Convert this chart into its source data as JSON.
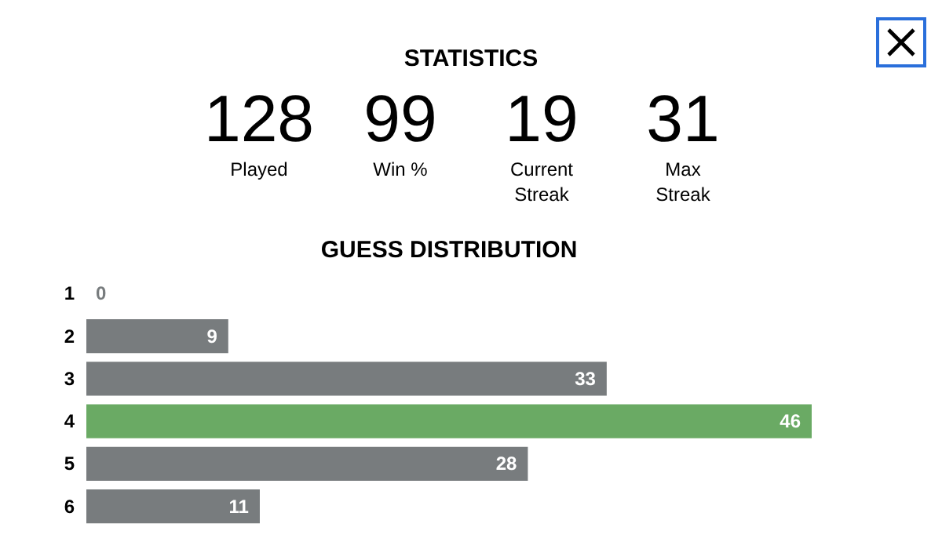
{
  "chart_data": [
    {
      "type": "other",
      "title": "STATISTICS",
      "annotations": [
        "128",
        "Played",
        "99",
        "Win %",
        "19",
        "Current Streak",
        "31",
        "Max Streak"
      ]
    },
    {
      "type": "bar",
      "orientation": "horizontal",
      "title": "GUESS DISTRIBUTION",
      "categories": [
        "1",
        "2",
        "3",
        "4",
        "5",
        "6"
      ],
      "values": [
        0,
        9,
        33,
        46,
        28,
        11
      ],
      "colors": [
        "#787c7e",
        "#787c7e",
        "#787c7e",
        "#6aaa64",
        "#787c7e",
        "#787c7e"
      ],
      "data_labels": true
    }
  ]
}
